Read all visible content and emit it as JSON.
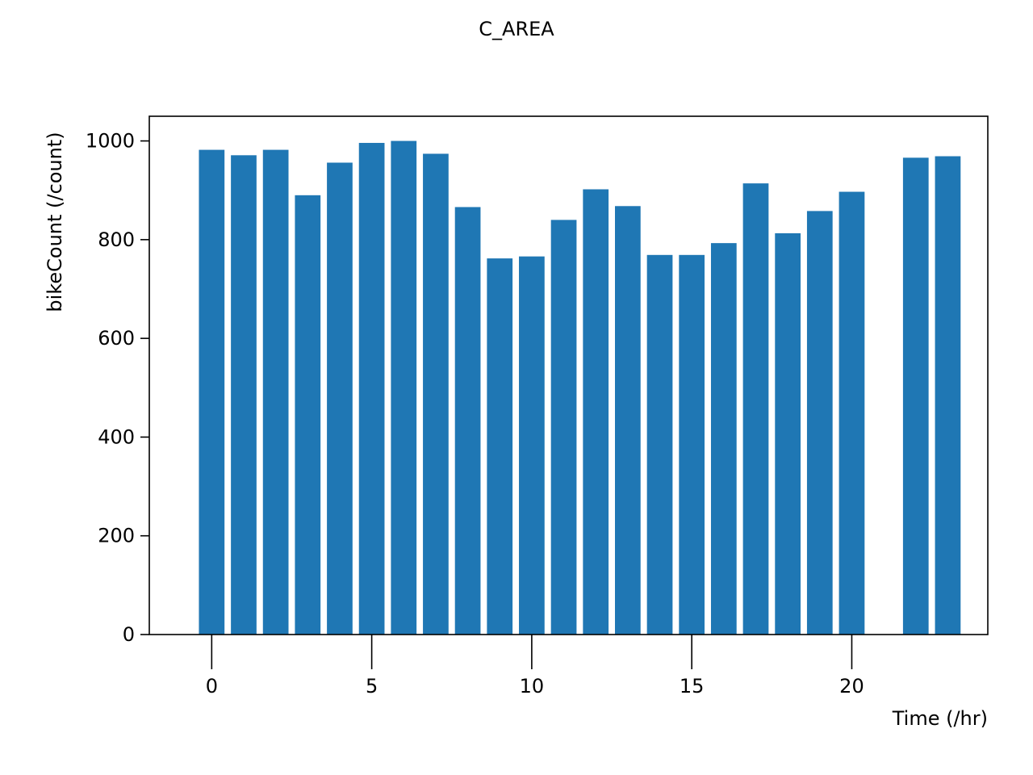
{
  "chart_data": {
    "type": "bar",
    "title": "C_AREA",
    "xlabel": "Time (/hr)",
    "ylabel": "bikeCount (/count)",
    "x": [
      0,
      1,
      2,
      3,
      4,
      5,
      6,
      7,
      8,
      9,
      10,
      11,
      12,
      13,
      14,
      15,
      16,
      17,
      18,
      19,
      20,
      22,
      23
    ],
    "values": [
      982,
      971,
      982,
      890,
      956,
      996,
      1000,
      974,
      866,
      762,
      766,
      840,
      902,
      868,
      769,
      769,
      793,
      914,
      813,
      858,
      897,
      966,
      969
    ],
    "xlim": [
      -1.95,
      24.25
    ],
    "ylim": [
      0,
      1050
    ],
    "xticks": [
      0,
      5,
      10,
      15,
      20
    ],
    "yticks": [
      0,
      200,
      400,
      600,
      800,
      1000
    ],
    "bar_width": 0.8,
    "bar_color": "#1f77b4",
    "grid": false,
    "legend": "none"
  }
}
